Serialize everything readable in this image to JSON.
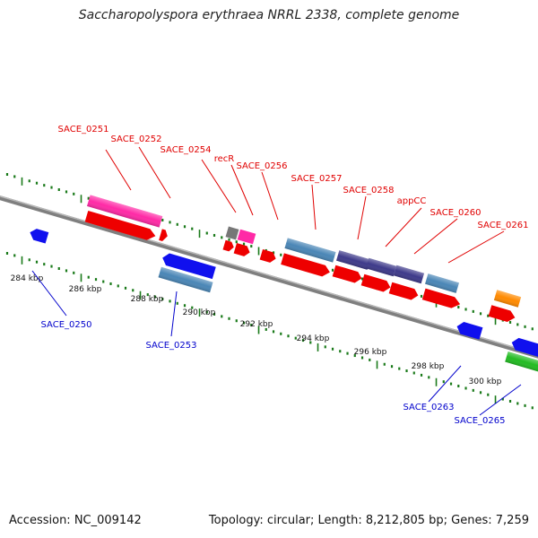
{
  "title": "Saccharopolyspora erythraea NRRL 2338, complete genome",
  "footer": {
    "accession": "Accession: NC_009142",
    "stats": "Topology: circular; Length: 8,212,805 bp; Genes: 7,259"
  },
  "colors": {
    "backbone": "#7f7f7f",
    "tick": "#1a7a1a",
    "label_top": "#e00000",
    "label_bottom": "#0000cc",
    "magenta": "#ff2aa6",
    "red": "#ee0000",
    "blue": "#1010ee",
    "steel": "#4a86b6",
    "indigo": "#3e3a8a",
    "gray": "#777777",
    "orange": "#ff8a00",
    "green": "#22bb22"
  },
  "kbp_labels": [
    "284 kbp",
    "286 kbp",
    "288 kbp",
    "290 kbp",
    "292 kbp",
    "294 kbp",
    "296 kbp",
    "298 kbp",
    "300 kbp"
  ],
  "gene_labels_top": [
    "SACE_0251",
    "SACE_0252",
    "SACE_0254",
    "recR",
    "SACE_0256",
    "SACE_0257",
    "SACE_0258",
    "appCC",
    "SACE_0260",
    "SACE_0261"
  ],
  "gene_labels_bottom": [
    "SACE_0250",
    "SACE_0253",
    "SACE_0263",
    "SACE_0265"
  ]
}
